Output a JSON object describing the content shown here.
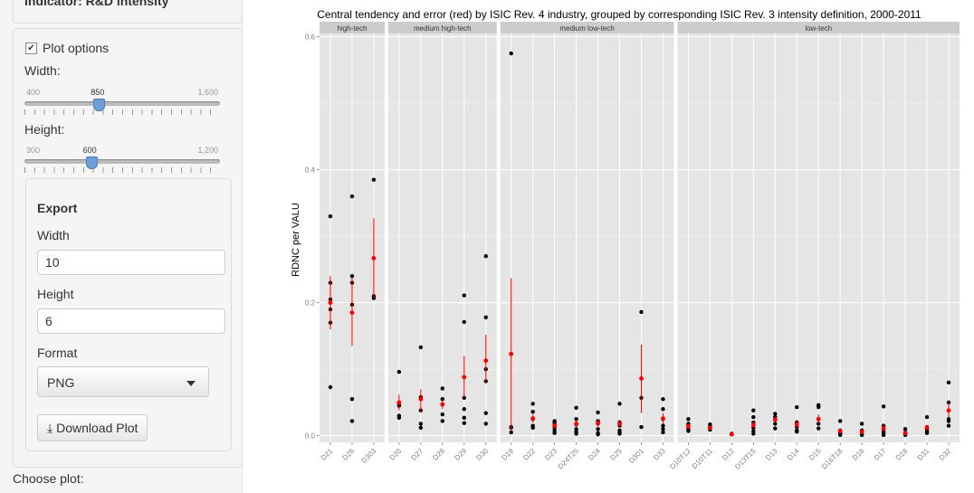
{
  "sidebar": {
    "top_title": "Indicator: R&D intensity",
    "plot_options_label": "Plot options",
    "width_label": "Width:",
    "width_slider": {
      "min": "400",
      "max": "1,600",
      "value": "850",
      "min_n": 400,
      "max_n": 1600,
      "value_n": 850
    },
    "height_label": "Height:",
    "height_slider": {
      "min": "300",
      "max": "1,200",
      "value": "600",
      "min_n": 300,
      "max_n": 1200,
      "value_n": 600
    },
    "export": {
      "title": "Export",
      "width_label": "Width",
      "width_value": "10",
      "height_label": "Height",
      "height_value": "6",
      "format_label": "Format",
      "format_value": "PNG",
      "download_label": "Download Plot",
      "download_icon": "download-icon"
    },
    "choose_label": "Choose plot:"
  },
  "colors": {
    "point": "#000000",
    "error": "#ff0000",
    "panel": "#e5e5e5",
    "strip": "#cccccc"
  },
  "chart_data": {
    "type": "scatter",
    "title": "Central tendency and error (red) by ISIC Rev. 4 industry, grouped by corresponding ISIC Rev. 3 intensity definition, 2000-2011",
    "ylabel": "RDNC per VALU",
    "xlabel": "",
    "ylim": [
      -0.01,
      0.605
    ],
    "yticks": [
      0.0,
      0.2,
      0.4,
      0.6
    ],
    "ytick_labels": [
      "0.0",
      "0.2",
      "0.4",
      "0.6"
    ],
    "grid": true,
    "facets": [
      {
        "label": "high-tech",
        "industries": [
          {
            "code": "D21",
            "points": [
              0.33,
              0.23,
              0.205,
              0.19,
              0.17,
              0.073
            ],
            "mean": 0.2,
            "err": [
              0.16,
              0.24
            ]
          },
          {
            "code": "D26",
            "points": [
              0.36,
              0.24,
              0.23,
              0.197,
              0.055,
              0.022
            ],
            "mean": 0.185,
            "err": [
              0.135,
              0.238
            ]
          },
          {
            "code": "D303",
            "points": [
              0.385,
              0.21,
              0.207
            ],
            "mean": 0.267,
            "err": [
              0.207,
              0.327
            ]
          }
        ]
      },
      {
        "label": "medium high-tech",
        "industries": [
          {
            "code": "D20",
            "points": [
              0.096,
              0.05,
              0.048,
              0.045,
              0.03,
              0.027
            ],
            "mean": 0.05,
            "err": [
              0.038,
              0.062
            ]
          },
          {
            "code": "D27",
            "points": [
              0.133,
              0.058,
              0.055,
              0.038,
              0.018,
              0.012
            ],
            "mean": 0.055,
            "err": [
              0.035,
              0.07
            ]
          },
          {
            "code": "D28",
            "points": [
              0.071,
              0.055,
              0.047,
              0.032,
              0.022
            ],
            "mean": 0.047,
            "err": [
              0.04,
              0.055
            ]
          },
          {
            "code": "D29",
            "points": [
              0.211,
              0.171,
              0.057,
              0.04,
              0.027,
              0.019
            ],
            "mean": 0.088,
            "err": [
              0.058,
              0.12
            ]
          },
          {
            "code": "D30",
            "points": [
              0.27,
              0.178,
              0.1,
              0.082,
              0.034,
              0.018
            ],
            "mean": 0.113,
            "err": [
              0.08,
              0.152
            ]
          }
        ]
      },
      {
        "label": "medium low-tech",
        "industries": [
          {
            "code": "D19",
            "points": [
              0.575,
              0.013,
              0.012,
              0.005
            ],
            "mean": 0.123,
            "err": [
              0.008,
              0.237
            ]
          },
          {
            "code": "D22",
            "points": [
              0.048,
              0.036,
              0.025,
              0.015,
              0.012
            ],
            "mean": 0.026,
            "err": [
              0.02,
              0.032
            ]
          },
          {
            "code": "D23",
            "points": [
              0.022,
              0.019,
              0.015,
              0.012,
              0.008,
              0.004
            ],
            "mean": 0.015,
            "err": [
              0.011,
              0.019
            ]
          },
          {
            "code": "D24T25",
            "points": [
              0.042,
              0.025,
              0.017,
              0.01,
              0.006,
              0.003
            ],
            "mean": 0.018,
            "err": [
              0.013,
              0.023
            ]
          },
          {
            "code": "D24",
            "points": [
              0.035,
              0.022,
              0.018,
              0.01,
              0.004,
              0.002
            ],
            "mean": 0.019,
            "err": [
              0.014,
              0.024
            ]
          },
          {
            "code": "D25",
            "points": [
              0.048,
              0.02,
              0.015,
              0.008,
              0.005,
              0.003
            ],
            "mean": 0.018,
            "err": [
              0.012,
              0.024
            ]
          },
          {
            "code": "D301",
            "points": [
              0.186,
              0.057,
              0.013
            ],
            "mean": 0.086,
            "err": [
              0.034,
              0.137
            ]
          },
          {
            "code": "D33",
            "points": [
              0.055,
              0.04,
              0.025,
              0.015,
              0.01,
              0.005
            ],
            "mean": 0.026,
            "err": [
              0.018,
              0.034
            ]
          }
        ]
      },
      {
        "label": "low-tech",
        "industries": [
          {
            "code": "D10T12",
            "points": [
              0.025,
              0.018,
              0.014,
              0.01,
              0.007
            ],
            "mean": 0.014,
            "err": [
              0.01,
              0.018
            ]
          },
          {
            "code": "D10T11",
            "points": [
              0.017,
              0.014,
              0.011,
              0.009
            ],
            "mean": 0.012,
            "err": [
              0.01,
              0.014
            ]
          },
          {
            "code": "D12",
            "points": [
              0.003,
              0.002
            ],
            "mean": 0.002,
            "err": [
              0.001,
              0.003
            ]
          },
          {
            "code": "D13T15",
            "points": [
              0.038,
              0.028,
              0.02,
              0.012,
              0.007,
              0.003
            ],
            "mean": 0.016,
            "err": [
              0.012,
              0.022
            ]
          },
          {
            "code": "D13",
            "points": [
              0.033,
              0.028,
              0.024,
              0.018,
              0.011
            ],
            "mean": 0.024,
            "err": [
              0.02,
              0.029
            ]
          },
          {
            "code": "D14",
            "points": [
              0.043,
              0.02,
              0.013,
              0.008,
              0.006
            ],
            "mean": 0.017,
            "err": [
              0.011,
              0.024
            ]
          },
          {
            "code": "D15",
            "points": [
              0.046,
              0.043,
              0.025,
              0.018,
              0.011
            ],
            "mean": 0.025,
            "err": [
              0.018,
              0.032
            ]
          },
          {
            "code": "D16T18",
            "points": [
              0.022,
              0.008,
              0.005,
              0.003,
              0.001
            ],
            "mean": 0.007,
            "err": [
              0.004,
              0.01
            ]
          },
          {
            "code": "D16",
            "points": [
              0.018,
              0.008,
              0.005,
              0.002,
              0.001
            ],
            "mean": 0.006,
            "err": [
              0.003,
              0.009
            ]
          },
          {
            "code": "D17",
            "points": [
              0.044,
              0.015,
              0.01,
              0.006,
              0.003,
              0.001
            ],
            "mean": 0.011,
            "err": [
              0.005,
              0.018
            ]
          },
          {
            "code": "D18",
            "points": [
              0.01,
              0.005,
              0.003,
              0.001
            ],
            "mean": 0.004,
            "err": [
              0.002,
              0.006
            ]
          },
          {
            "code": "D31",
            "points": [
              0.028,
              0.013,
              0.009,
              0.006,
              0.004
            ],
            "mean": 0.012,
            "err": [
              0.008,
              0.016
            ]
          },
          {
            "code": "D32",
            "points": [
              0.08,
              0.05,
              0.025,
              0.022,
              0.015
            ],
            "mean": 0.038,
            "err": [
              0.028,
              0.05
            ]
          }
        ]
      }
    ]
  }
}
